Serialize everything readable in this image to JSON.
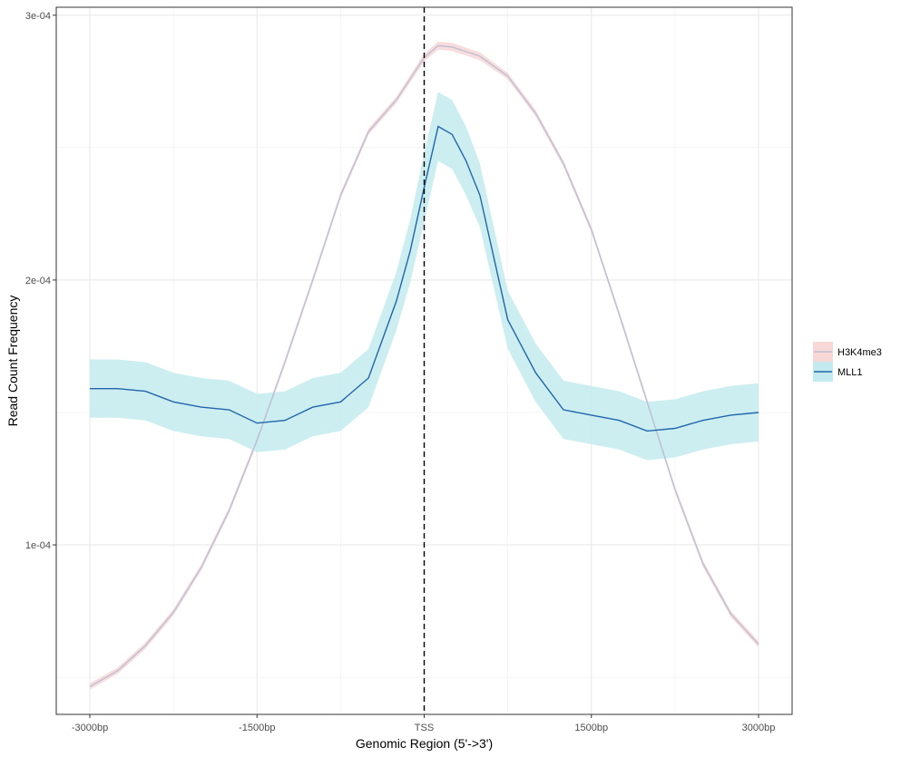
{
  "chart_data": {
    "type": "line",
    "xlabel": "Genomic Region (5'->3')",
    "ylabel": "Read Count Frequency",
    "xlim": [
      -3000,
      3000
    ],
    "ylim": [
      3.6e-05,
      0.000303
    ],
    "x_ticks": [
      {
        "value": -3000,
        "label": "-3000bp"
      },
      {
        "value": -1500,
        "label": "-1500bp"
      },
      {
        "value": 0,
        "label": "TSS"
      },
      {
        "value": 1500,
        "label": "1500bp"
      },
      {
        "value": 3000,
        "label": "3000bp"
      }
    ],
    "y_ticks": [
      {
        "value": 0.0001,
        "label": "1e-04"
      },
      {
        "value": 0.0002,
        "label": "2e-04"
      },
      {
        "value": 0.0003,
        "label": "3e-04"
      }
    ],
    "vline": {
      "x": 0,
      "style": "dashed"
    },
    "grid": true,
    "legend_position": "right",
    "series": [
      {
        "name": "H3K4me3",
        "line_color": "#bcbfd6",
        "ribbon_color": "#f8d7d7",
        "x": [
          -3000,
          -2750,
          -2500,
          -2250,
          -2000,
          -1750,
          -1500,
          -1250,
          -1000,
          -750,
          -500,
          -250,
          0,
          125,
          250,
          500,
          750,
          1000,
          1250,
          1500,
          1750,
          2000,
          2250,
          2500,
          2750,
          3000
        ],
        "y": [
          4.65e-05,
          5.25e-05,
          6.2e-05,
          7.45e-05,
          9.15e-05,
          0.000113,
          0.0001395,
          0.000169,
          0.0002,
          0.000232,
          0.000256,
          0.000268,
          0.000284,
          0.0002885,
          0.000288,
          0.0002845,
          0.000277,
          0.000263,
          0.000244,
          0.000219,
          0.000187,
          0.000154,
          0.000121,
          9.3e-05,
          7.4e-05,
          6.25e-05
        ],
        "ribbon_halfwidth": [
          1.2e-06,
          1.2e-06,
          1.2e-06,
          1.2e-06,
          1.2e-06,
          1.2e-06,
          1.2e-06,
          1.2e-06,
          1.2e-06,
          1.2e-06,
          1.2e-06,
          1.2e-06,
          1.5e-06,
          1.5e-06,
          1.5e-06,
          1.5e-06,
          1.2e-06,
          1.2e-06,
          1.2e-06,
          1.2e-06,
          1.2e-06,
          1.2e-06,
          1.2e-06,
          1.2e-06,
          1.2e-06,
          1.2e-06
        ]
      },
      {
        "name": "MLL1",
        "line_color": "#2166ac",
        "ribbon_color": "#c3ebef",
        "x": [
          -3000,
          -2750,
          -2500,
          -2250,
          -2000,
          -1750,
          -1500,
          -1250,
          -1000,
          -750,
          -500,
          -250,
          -125,
          0,
          125,
          250,
          375,
          500,
          750,
          1000,
          1250,
          1500,
          1750,
          2000,
          2250,
          2500,
          2750,
          3000
        ],
        "y": [
          0.000159,
          0.000159,
          0.000158,
          0.000154,
          0.000152,
          0.000151,
          0.000146,
          0.000147,
          0.000152,
          0.000154,
          0.000163,
          0.000192,
          0.000211,
          0.000235,
          0.000258,
          0.000255,
          0.000245,
          0.000232,
          0.000185,
          0.000165,
          0.000151,
          0.000149,
          0.000147,
          0.000143,
          0.000144,
          0.000147,
          0.000149,
          0.00015
        ],
        "ribbon_halfwidth": [
          1.1e-05,
          1.1e-05,
          1.1e-05,
          1.1e-05,
          1.1e-05,
          1.1e-05,
          1.1e-05,
          1.1e-05,
          1.1e-05,
          1.1e-05,
          1.1e-05,
          1.1e-05,
          1.2e-05,
          1.3e-05,
          1.3e-05,
          1.3e-05,
          1.3e-05,
          1.2e-05,
          1.1e-05,
          1.1e-05,
          1.1e-05,
          1.1e-05,
          1.1e-05,
          1.1e-05,
          1.1e-05,
          1.1e-05,
          1.1e-05,
          1.1e-05
        ]
      }
    ]
  }
}
